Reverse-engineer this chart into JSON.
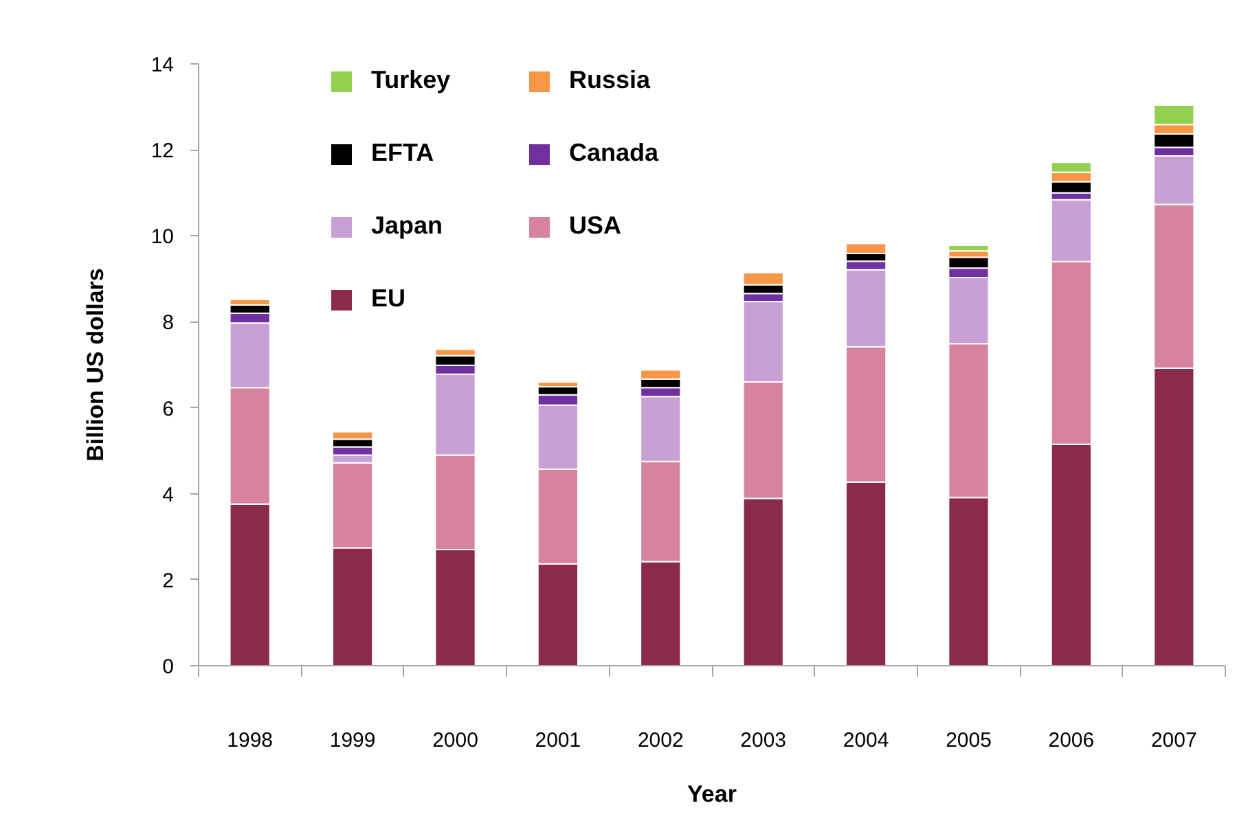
{
  "chart_data": {
    "type": "bar",
    "stacked": true,
    "xlabel": "Year",
    "ylabel": "Billion US dollars",
    "categories": [
      "1998",
      "1999",
      "2000",
      "2001",
      "2002",
      "2003",
      "2004",
      "2005",
      "2006",
      "2007"
    ],
    "ylim": [
      0,
      14
    ],
    "yticks": [
      0,
      2,
      4,
      6,
      8,
      10,
      12,
      14
    ],
    "grid": false,
    "legend": "top left",
    "series": [
      {
        "name": "EU",
        "color": "#8b2a4a",
        "values": [
          3.76,
          2.74,
          2.7,
          2.37,
          2.42,
          3.89,
          4.27,
          3.91,
          5.15,
          6.92
        ]
      },
      {
        "name": "USA",
        "color": "#d6849d",
        "values": [
          2.71,
          1.98,
          2.2,
          2.2,
          2.33,
          2.71,
          3.15,
          3.58,
          4.25,
          3.81
        ]
      },
      {
        "name": "Japan",
        "color": "#c9a0d3",
        "values": [
          1.5,
          0.18,
          1.88,
          1.49,
          1.51,
          1.87,
          1.79,
          1.54,
          1.44,
          1.13
        ]
      },
      {
        "name": "Canada",
        "color": "#7030a0",
        "values": [
          0.23,
          0.19,
          0.21,
          0.24,
          0.21,
          0.19,
          0.2,
          0.22,
          0.16,
          0.2
        ]
      },
      {
        "name": "EFTA",
        "color": "#000000",
        "values": [
          0.19,
          0.18,
          0.22,
          0.19,
          0.2,
          0.2,
          0.18,
          0.25,
          0.26,
          0.31
        ]
      },
      {
        "name": "Russia",
        "color": "#f79646",
        "values": [
          0.13,
          0.17,
          0.15,
          0.11,
          0.21,
          0.28,
          0.23,
          0.15,
          0.22,
          0.22
        ]
      },
      {
        "name": "Turkey",
        "color": "#92d050",
        "values": [
          null,
          null,
          null,
          null,
          null,
          null,
          null,
          0.13,
          0.23,
          0.45
        ]
      }
    ]
  }
}
